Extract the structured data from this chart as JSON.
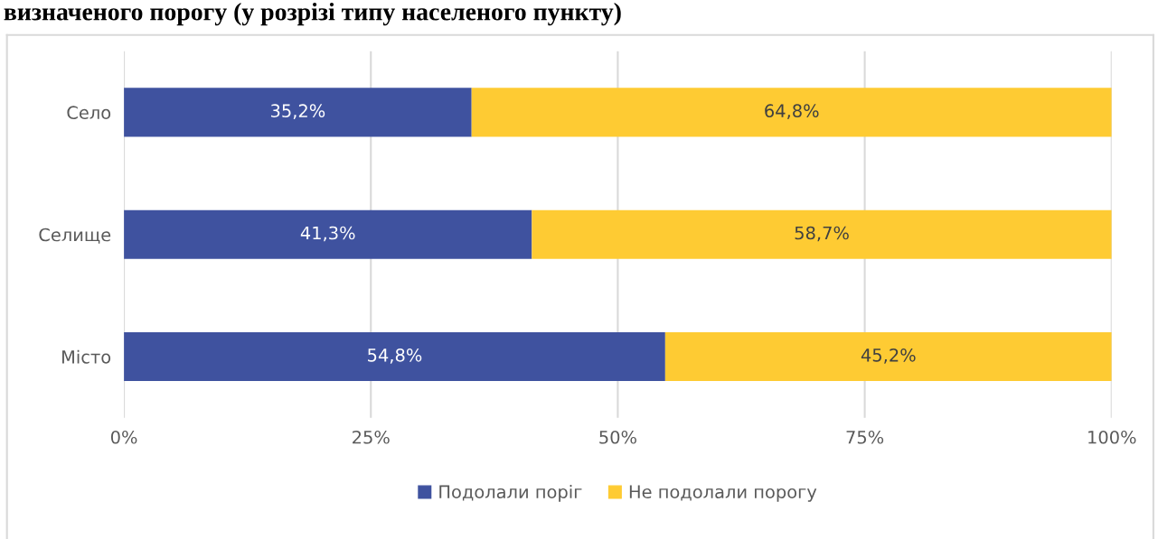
{
  "chart_data": {
    "type": "bar",
    "orientation": "horizontal",
    "stacked": true,
    "title": "визначеного порогу (у розрізі типу населеного пункту)",
    "categories": [
      "Село",
      "Селище",
      "Місто"
    ],
    "series": [
      {
        "name": "Подолали поріг",
        "color": "#3f529f",
        "values": [
          35.2,
          41.3,
          54.8
        ],
        "value_labels": [
          "35,2%",
          "41,3%",
          "54,8%"
        ]
      },
      {
        "name": "Не подолали порогу",
        "color": "#fecb33",
        "values": [
          64.8,
          58.7,
          45.2
        ],
        "value_labels": [
          "64,8%",
          "58,7%",
          "45,2%"
        ]
      }
    ],
    "xlim": [
      0,
      100
    ],
    "xticks": [
      {
        "value": 0,
        "label": "0%"
      },
      {
        "value": 25,
        "label": "25%"
      },
      {
        "value": 50,
        "label": "50%"
      },
      {
        "value": 75,
        "label": "75%"
      },
      {
        "value": 100,
        "label": "100%"
      }
    ],
    "grid": "x",
    "legend": "bottom"
  }
}
